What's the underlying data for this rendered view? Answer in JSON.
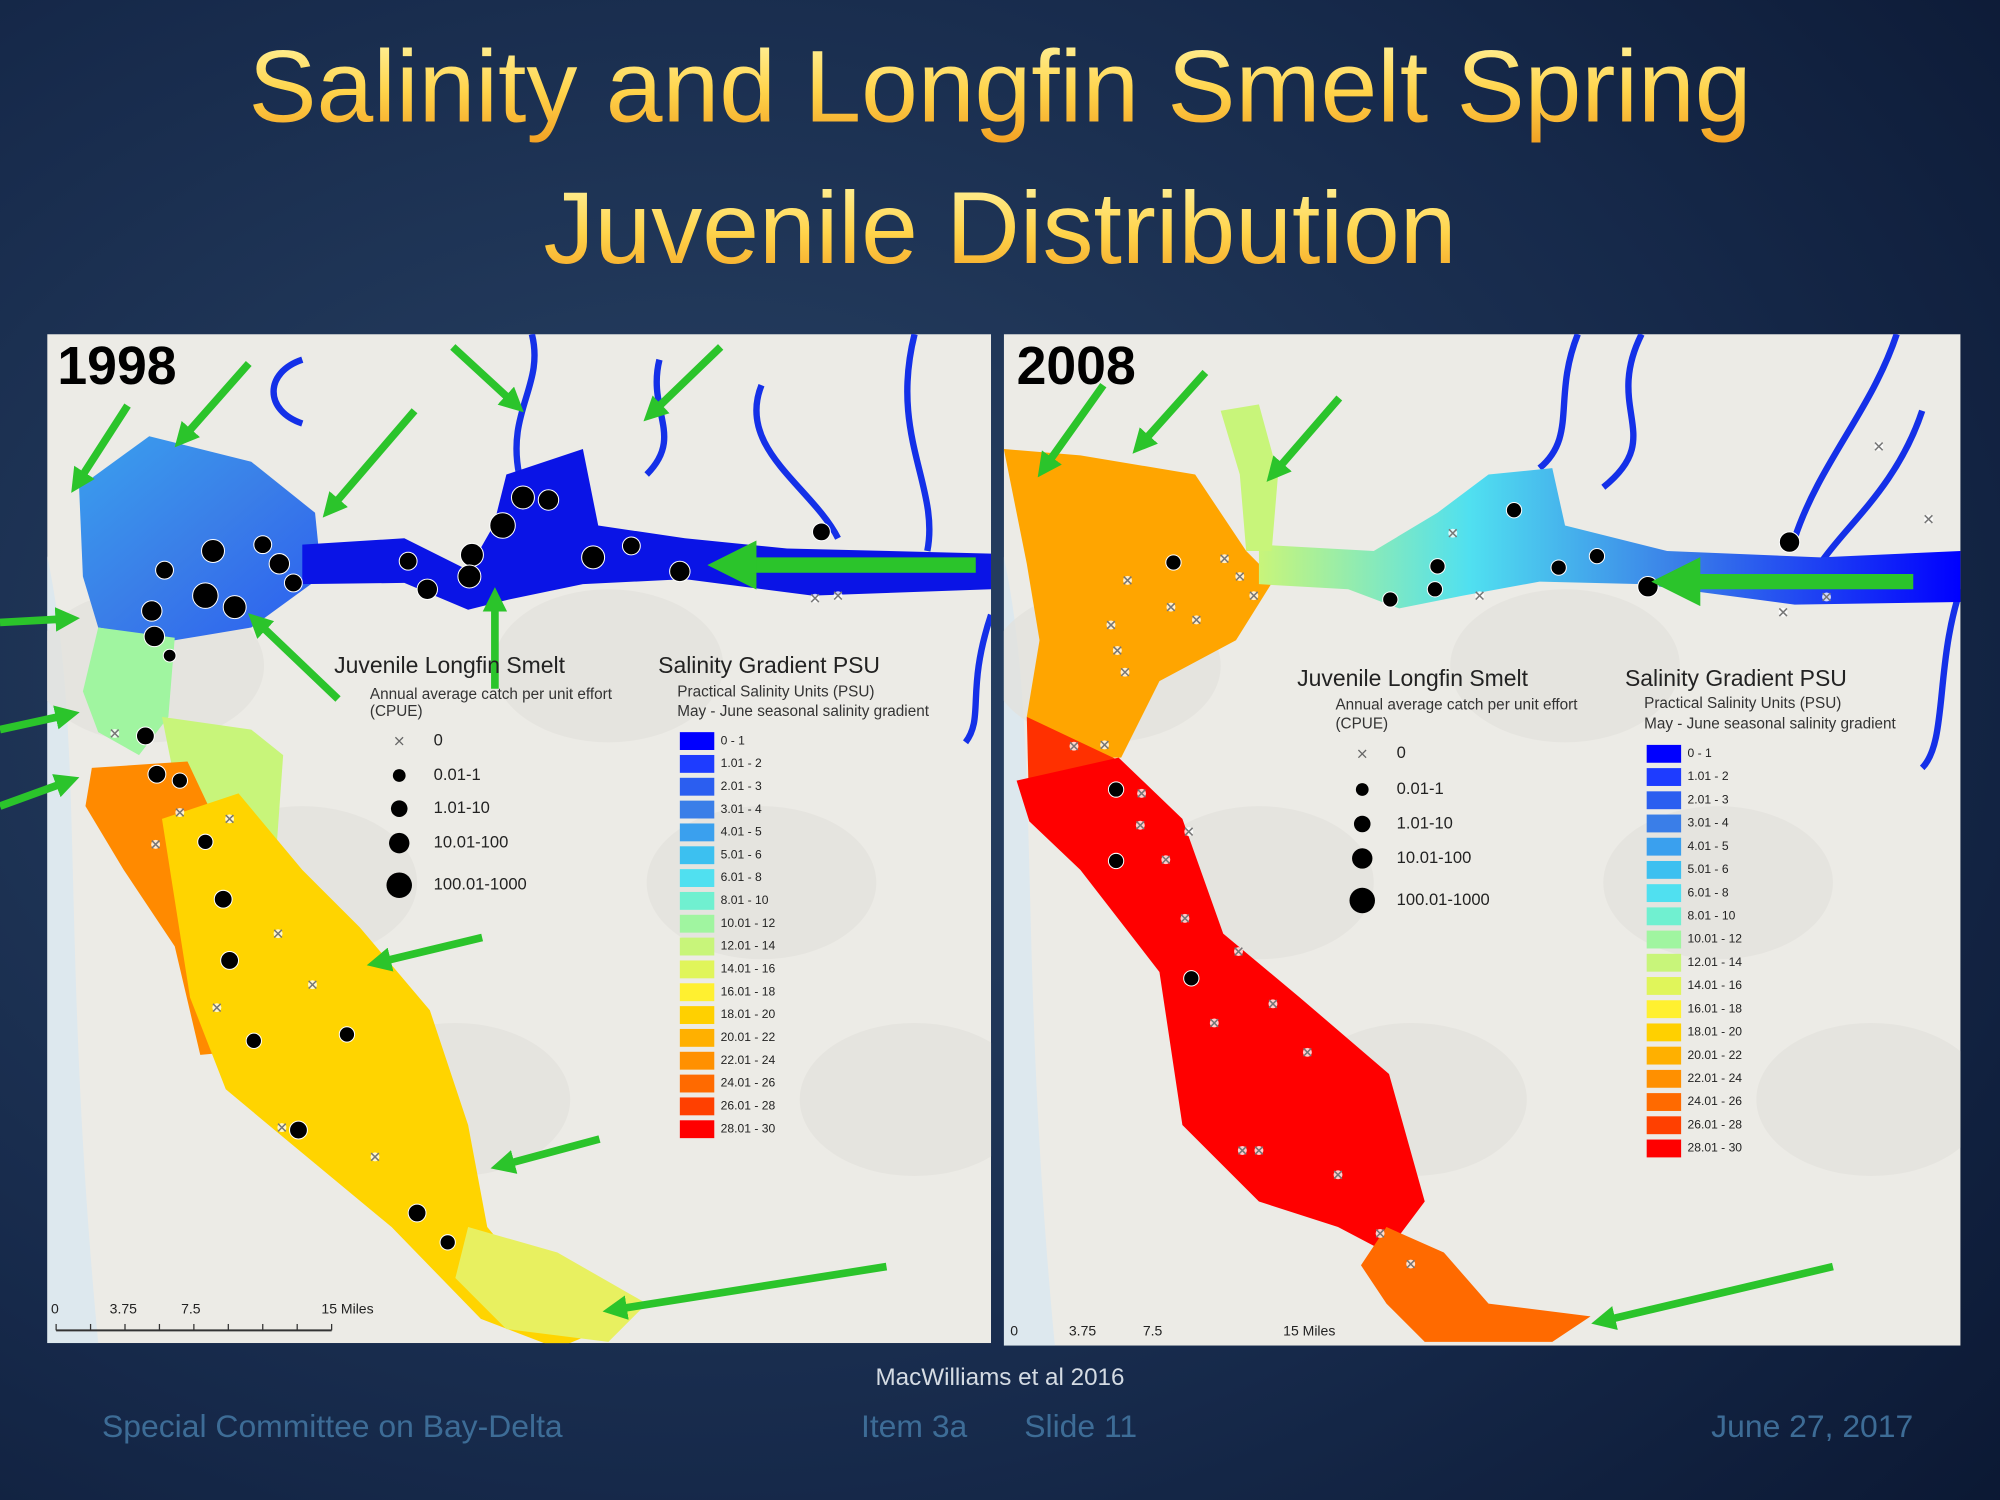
{
  "title_lines": [
    "Salinity and Longfin Smelt Spring",
    "Juvenile Distribution"
  ],
  "panels": [
    {
      "year": "1998",
      "catch_legend": {
        "title": "Juvenile Longfin Smelt",
        "subtitle": [
          "Annual average catch per unit effort",
          "(CPUE)"
        ],
        "classes": [
          "0",
          "0.01-1",
          "1.01-10",
          "10.01-100",
          "100.01-1000"
        ]
      },
      "salinity_legend": {
        "title": "Salinity Gradient PSU",
        "subtitle": [
          "Practical Salinity Units (PSU)",
          "May - June seasonal salinity gradient"
        ],
        "classes": [
          {
            "label": "0 - 1",
            "color": "#0000ff"
          },
          {
            "label": "1.01 - 2",
            "color": "#1e3cff"
          },
          {
            "label": "2.01 - 3",
            "color": "#2b5ef0"
          },
          {
            "label": "3.01 - 4",
            "color": "#3a7ee8"
          },
          {
            "label": "4.01 - 5",
            "color": "#3aa0ee"
          },
          {
            "label": "5.01 - 6",
            "color": "#3cc0f0"
          },
          {
            "label": "6.01 - 8",
            "color": "#50e0f0"
          },
          {
            "label": "8.01 - 10",
            "color": "#70f0d0"
          },
          {
            "label": "10.01 - 12",
            "color": "#a0f5a0"
          },
          {
            "label": "12.01 - 14",
            "color": "#c8f57a"
          },
          {
            "label": "14.01 - 16",
            "color": "#e0f55a"
          },
          {
            "label": "16.01 - 18",
            "color": "#fff030"
          },
          {
            "label": "18.01 - 20",
            "color": "#ffd000"
          },
          {
            "label": "20.01 - 22",
            "color": "#ffb000"
          },
          {
            "label": "22.01 - 24",
            "color": "#ff9000"
          },
          {
            "label": "24.01 - 26",
            "color": "#ff6a00"
          },
          {
            "label": "26.01 - 28",
            "color": "#ff4000"
          },
          {
            "label": "28.01 - 30",
            "color": "#ff0000"
          }
        ]
      },
      "scale_labels": [
        "0",
        "3.75",
        "7.5",
        "15 Miles"
      ]
    },
    {
      "year": "2008",
      "catch_legend": {
        "title": "Juvenile Longfin Smelt",
        "subtitle": [
          "Annual average catch per unit effort",
          "(CPUE)"
        ],
        "classes": [
          "0",
          "0.01-1",
          "1.01-10",
          "10.01-100",
          "100.01-1000"
        ]
      },
      "salinity_legend": {
        "title": "Salinity Gradient PSU",
        "subtitle": [
          "Practical Salinity Units (PSU)",
          "May - June seasonal salinity gradient"
        ],
        "classes": [
          {
            "label": "0 - 1",
            "color": "#0000ff"
          },
          {
            "label": "1.01 - 2",
            "color": "#1e3cff"
          },
          {
            "label": "2.01 - 3",
            "color": "#2b5ef0"
          },
          {
            "label": "3.01 - 4",
            "color": "#3a7ee8"
          },
          {
            "label": "4.01 - 5",
            "color": "#3aa0ee"
          },
          {
            "label": "5.01 - 6",
            "color": "#3cc0f0"
          },
          {
            "label": "6.01 - 8",
            "color": "#50e0f0"
          },
          {
            "label": "8.01 - 10",
            "color": "#70f0d0"
          },
          {
            "label": "10.01 - 12",
            "color": "#a0f5a0"
          },
          {
            "label": "12.01 - 14",
            "color": "#c8f57a"
          },
          {
            "label": "14.01 - 16",
            "color": "#e0f55a"
          },
          {
            "label": "16.01 - 18",
            "color": "#fff030"
          },
          {
            "label": "18.01 - 20",
            "color": "#ffd000"
          },
          {
            "label": "20.01 - 22",
            "color": "#ffb000"
          },
          {
            "label": "22.01 - 24",
            "color": "#ff9000"
          },
          {
            "label": "24.01 - 26",
            "color": "#ff6a00"
          },
          {
            "label": "26.01 - 28",
            "color": "#ff4000"
          },
          {
            "label": "28.01 - 30",
            "color": "#ff0000"
          }
        ]
      },
      "scale_labels": [
        "0",
        "3.75",
        "7.5",
        "15 Miles"
      ]
    }
  ],
  "citation": "MacWilliams et al 2016",
  "footer": {
    "committee": "Special Committee on Bay-Delta",
    "item": "Item 3a",
    "slide": "Slide 11",
    "date": "June 27, 2017"
  }
}
